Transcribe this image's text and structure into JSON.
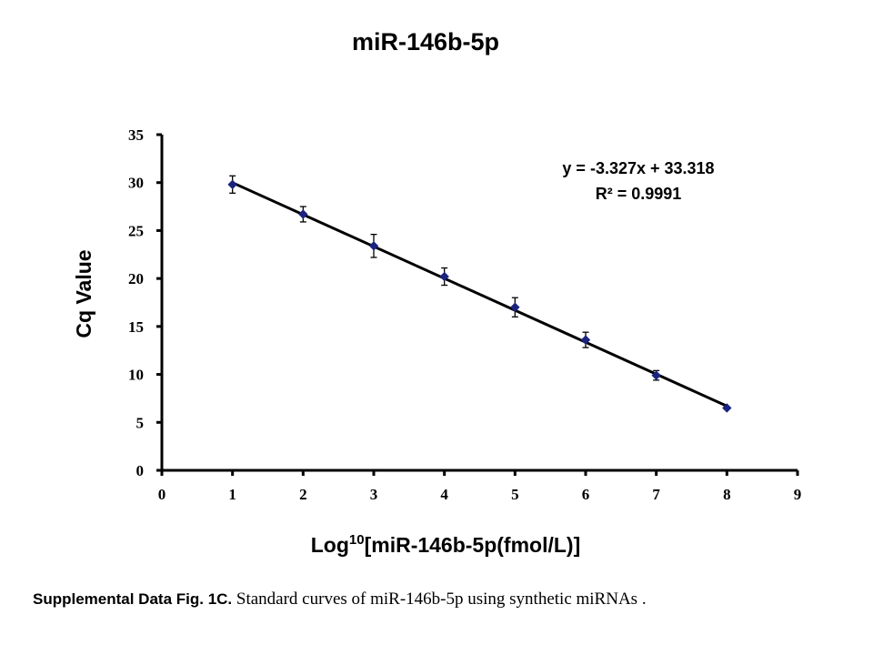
{
  "chart_data": {
    "type": "scatter",
    "title": "miR-146b-5p",
    "xlabel_prefix": "Log",
    "xlabel_sup": "10",
    "xlabel_suffix": "[miR-146b-5p(fmol/L)]",
    "ylabel": "Cq Value",
    "xlim": [
      0,
      9
    ],
    "ylim": [
      0,
      35
    ],
    "x_ticks": [
      0,
      1,
      2,
      3,
      4,
      5,
      6,
      7,
      8,
      9
    ],
    "y_ticks": [
      0,
      5,
      10,
      15,
      20,
      25,
      30,
      35
    ],
    "grid": false,
    "legend": false,
    "series": [
      {
        "x": [
          1,
          2,
          3,
          4,
          5,
          6,
          7,
          8
        ],
        "y": [
          29.8,
          26.7,
          23.4,
          20.2,
          17.0,
          13.6,
          9.9,
          6.5
        ],
        "error": [
          0.9,
          0.8,
          1.2,
          0.9,
          1.0,
          0.8,
          0.5,
          0.1
        ],
        "marker_color": "#1a237e"
      }
    ],
    "trendline": {
      "slope": -3.327,
      "intercept": 33.318,
      "x_range": [
        1,
        8
      ],
      "color": "#000000"
    },
    "equation_text": "y = -3.327x + 33.318",
    "r2_text": "R² = 0.9991"
  },
  "caption": {
    "lead": "Supplemental Data Fig. 1C.",
    "body": "Standard curves of miR-146b-5p using synthetic miRNAs ."
  }
}
